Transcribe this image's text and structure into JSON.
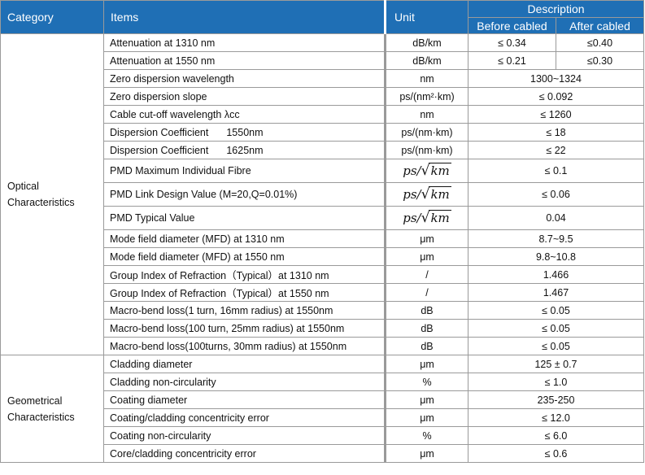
{
  "header": {
    "category": "Category",
    "items": "Items",
    "unit": "Unit",
    "description": "Description",
    "before_cabled": "Before cabled",
    "after_cabled": "After cabled"
  },
  "groups": {
    "optical": "Optical Characteristics",
    "geometrical": "Geometrical Characteristics"
  },
  "rows": [
    {
      "item": "Attenuation at 1310 nm",
      "unit": "dB/km",
      "before": "≤ 0.34",
      "after": "≤0.40"
    },
    {
      "item": "Attenuation at 1550 nm",
      "unit": "dB/km",
      "before": "≤ 0.21",
      "after": "≤0.30"
    },
    {
      "item": "Zero dispersion wavelength",
      "unit": "nm",
      "value": "1300~1324"
    },
    {
      "item": "Zero dispersion slope",
      "unit": "ps/(nm²·km)",
      "value": "≤ 0.092"
    },
    {
      "item": "Cable cut-off wavelength λcc",
      "unit": "nm",
      "value": "≤ 1260"
    },
    {
      "item": "Dispersion Coefficient",
      "item_extra": "1550nm",
      "unit": "ps/(nm·km)",
      "value": "≤ 18"
    },
    {
      "item": "Dispersion Coefficient",
      "item_extra": "1625nm",
      "unit": "ps/(nm·km)",
      "value": "≤ 22"
    },
    {
      "item": "PMD Maximum Individual Fibre",
      "unit_num": "ps",
      "unit_rad": "km",
      "value": "≤ 0.1"
    },
    {
      "item": "PMD Link Design Value (M=20,Q=0.01%)",
      "unit_num": "ps",
      "unit_rad": "km",
      "value": "≤ 0.06"
    },
    {
      "item": "PMD Typical Value",
      "unit_num": "ps",
      "unit_rad": "km",
      "value": "0.04"
    },
    {
      "item": "Mode field diameter (MFD) at 1310 nm",
      "unit": "μm",
      "value": "8.7~9.5"
    },
    {
      "item": "Mode field diameter (MFD) at 1550 nm",
      "unit": "μm",
      "value": "9.8~10.8"
    },
    {
      "item": "Group Index of Refraction（Typical）at 1310 nm",
      "unit": "/",
      "value": "1.466"
    },
    {
      "item": "Group Index of Refraction（Typical）at 1550 nm",
      "unit": "/",
      "value": "1.467"
    },
    {
      "item": "Macro-bend loss(1 turn, 16mm radius) at 1550nm",
      "unit": "dB",
      "value": "≤ 0.05"
    },
    {
      "item": "Macro-bend loss(100 turn, 25mm radius) at 1550nm",
      "unit": "dB",
      "value": "≤ 0.05"
    },
    {
      "item": "Macro-bend loss(100turns, 30mm radius) at 1550nm",
      "unit": "dB",
      "value": "≤ 0.05"
    },
    {
      "item": "Cladding diameter",
      "unit": "μm",
      "value": "125 ± 0.7"
    },
    {
      "item": "Cladding non-circularity",
      "unit": "%",
      "value": "≤ 1.0"
    },
    {
      "item": "Coating diameter",
      "unit": "μm",
      "value": "235-250"
    },
    {
      "item": "Coating/cladding concentricity error",
      "unit": "μm",
      "value": "≤ 12.0"
    },
    {
      "item": "Coating non-circularity",
      "unit": "%",
      "value": "≤ 6.0"
    },
    {
      "item": "Core/cladding concentricity error",
      "unit": "μm",
      "value": "≤ 0.6"
    }
  ],
  "colors": {
    "header_bg": "#1f6fb5",
    "header_text": "#ffffff",
    "grid": "#9a9a9a"
  }
}
